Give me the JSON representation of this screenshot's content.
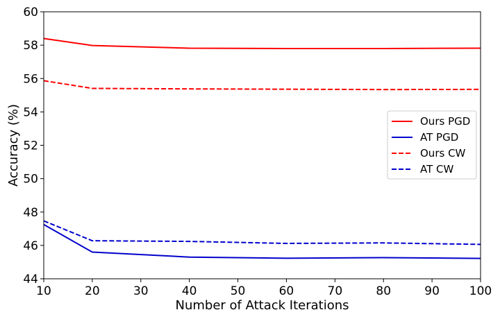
{
  "chart_data": {
    "type": "line",
    "title": "",
    "xlabel": "Number of Attack Iterations",
    "ylabel": "Accuracy (%)",
    "xlim": [
      10,
      100
    ],
    "ylim": [
      44,
      60
    ],
    "xticks": [
      10,
      20,
      30,
      40,
      50,
      60,
      70,
      80,
      90,
      100
    ],
    "yticks": [
      44,
      46,
      48,
      50,
      52,
      54,
      56,
      58,
      60
    ],
    "x": [
      10,
      20,
      40,
      60,
      80,
      100
    ],
    "grid": false,
    "legend_position": "center-right",
    "series": [
      {
        "name": "Ours PGD",
        "color": "#ff0000",
        "dash": "solid",
        "values": [
          58.4,
          57.98,
          57.82,
          57.8,
          57.8,
          57.82
        ]
      },
      {
        "name": "AT PGD",
        "color": "#0000cc",
        "dash": "solid",
        "values": [
          47.25,
          45.6,
          45.3,
          45.23,
          45.27,
          45.22
        ]
      },
      {
        "name": "Ours CW",
        "color": "#ff0000",
        "dash": "dashed",
        "values": [
          55.87,
          55.41,
          55.38,
          55.36,
          55.34,
          55.35
        ]
      },
      {
        "name": "AT CW",
        "color": "#0000cc",
        "dash": "dashed",
        "values": [
          47.47,
          46.28,
          46.24,
          46.12,
          46.15,
          46.06
        ]
      }
    ]
  }
}
